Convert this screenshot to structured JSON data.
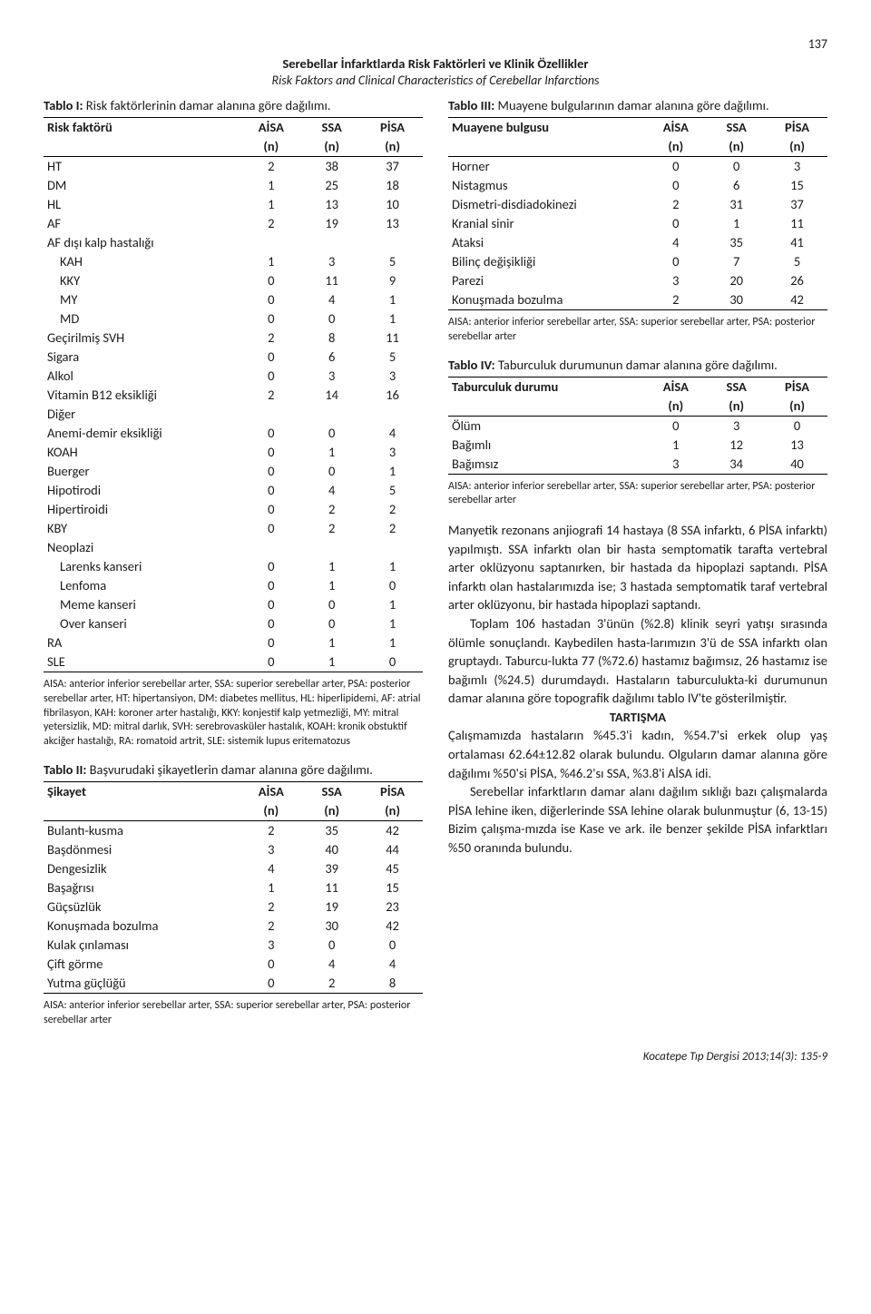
{
  "page_number": "137",
  "header": {
    "title_tr": "Serebellar İnfarktlarda Risk Faktörleri ve Klinik Özellikler",
    "title_en": "Risk Faktors and Clinical Characteristics of Cerebellar Infarctions"
  },
  "table1": {
    "caption_label": "Tablo I:",
    "caption_text": " Risk faktörlerinin damar alanına göre dağılımı.",
    "col_headers": [
      "Risk faktörü",
      "AİSA",
      "SSA",
      "PİSA"
    ],
    "sub_headers": [
      "",
      "(n)",
      "(n)",
      "(n)"
    ],
    "rows": [
      {
        "label": "HT",
        "a": "2",
        "s": "38",
        "p": "37",
        "indent": false
      },
      {
        "label": "DM",
        "a": "1",
        "s": "25",
        "p": "18",
        "indent": false
      },
      {
        "label": "HL",
        "a": "1",
        "s": "13",
        "p": "10",
        "indent": false
      },
      {
        "label": "AF",
        "a": "2",
        "s": "19",
        "p": "13",
        "indent": false
      },
      {
        "label": "AF dışı kalp hastalığı",
        "a": "",
        "s": "",
        "p": "",
        "indent": false
      },
      {
        "label": "KAH",
        "a": "1",
        "s": "3",
        "p": "5",
        "indent": true
      },
      {
        "label": "KKY",
        "a": "0",
        "s": "11",
        "p": "9",
        "indent": true
      },
      {
        "label": "MY",
        "a": "0",
        "s": "4",
        "p": "1",
        "indent": true
      },
      {
        "label": "MD",
        "a": "0",
        "s": "0",
        "p": "1",
        "indent": true
      },
      {
        "label": "Geçirilmiş SVH",
        "a": "2",
        "s": "8",
        "p": "11",
        "indent": false
      },
      {
        "label": "Sigara",
        "a": "0",
        "s": "6",
        "p": "5",
        "indent": false
      },
      {
        "label": "Alkol",
        "a": "0",
        "s": "3",
        "p": "3",
        "indent": false
      },
      {
        "label": "Vitamin B12 eksikliği",
        "a": "2",
        "s": "14",
        "p": "16",
        "indent": false
      },
      {
        "label": "Diğer",
        "a": "",
        "s": "",
        "p": "",
        "indent": false
      },
      {
        "label": "Anemi-demir eksikliği",
        "a": "0",
        "s": "0",
        "p": "4",
        "indent": false
      },
      {
        "label": "KOAH",
        "a": "0",
        "s": "1",
        "p": "3",
        "indent": false
      },
      {
        "label": "Buerger",
        "a": "0",
        "s": "0",
        "p": "1",
        "indent": false
      },
      {
        "label": "Hipotirodi",
        "a": "0",
        "s": "4",
        "p": "5",
        "indent": false
      },
      {
        "label": "Hipertiroidi",
        "a": "0",
        "s": "2",
        "p": "2",
        "indent": false
      },
      {
        "label": "KBY",
        "a": "0",
        "s": "2",
        "p": "2",
        "indent": false
      },
      {
        "label": "Neoplazi",
        "a": "",
        "s": "",
        "p": "",
        "indent": false
      },
      {
        "label": "Larenks kanseri",
        "a": "0",
        "s": "1",
        "p": "1",
        "indent": true
      },
      {
        "label": "Lenfoma",
        "a": "0",
        "s": "1",
        "p": "0",
        "indent": true
      },
      {
        "label": "Meme kanseri",
        "a": "0",
        "s": "0",
        "p": "1",
        "indent": true
      },
      {
        "label": "Over kanseri",
        "a": "0",
        "s": "0",
        "p": "1",
        "indent": true
      },
      {
        "label": "RA",
        "a": "0",
        "s": "1",
        "p": "1",
        "indent": false
      },
      {
        "label": "SLE",
        "a": "0",
        "s": "1",
        "p": "0",
        "indent": false
      }
    ],
    "footnote": "AISA: anterior inferior serebellar arter, SSA: superior serebellar arter, PSA: posterior serebellar arter, HT: hipertansiyon, DM: diabetes mellitus, HL: hiperlipidemi, AF: atrial fibrilasyon, KAH: koroner arter hastalığı, KKY: konjestif kalp yetmezliği,  MY: mitral yetersizlik, MD: mitral darlık, SVH: serebrovasküler hastalık, KOAH: kronik obstuktif akciğer hastalığı, RA: romatoid artrit, SLE: sistemik lupus eritematozus"
  },
  "table2": {
    "caption_label": "Tablo II:",
    "caption_text": " Başvurudaki şikayetlerin damar alanına göre dağılımı.",
    "col_headers": [
      "Şikayet",
      "AİSA",
      "SSA",
      "PİSA"
    ],
    "sub_headers": [
      "",
      "(n)",
      "(n)",
      "(n)"
    ],
    "rows": [
      {
        "label": "Bulantı-kusma",
        "a": "2",
        "s": "35",
        "p": "42"
      },
      {
        "label": "Başdönmesi",
        "a": "3",
        "s": "40",
        "p": "44"
      },
      {
        "label": "Dengesizlik",
        "a": "4",
        "s": "39",
        "p": "45"
      },
      {
        "label": "Başağrısı",
        "a": "1",
        "s": "11",
        "p": "15"
      },
      {
        "label": "Güçsüzlük",
        "a": "2",
        "s": "19",
        "p": "23"
      },
      {
        "label": "Konuşmada bozulma",
        "a": "2",
        "s": "30",
        "p": "42"
      },
      {
        "label": "Kulak çınlaması",
        "a": "3",
        "s": "0",
        "p": "0"
      },
      {
        "label": "Çift görme",
        "a": "0",
        "s": "4",
        "p": "4"
      },
      {
        "label": "Yutma güçlüğü",
        "a": "0",
        "s": "2",
        "p": "8"
      }
    ],
    "footnote": "AISA: anterior inferior serebellar arter, SSA: superior serebellar arter, PSA: posterior serebellar arter"
  },
  "table3": {
    "caption_label": "Tablo III:",
    "caption_text": " Muayene bulgularının damar alanına göre dağılımı.",
    "col_headers": [
      "Muayene bulgusu",
      "AİSA",
      "SSA",
      "PİSA"
    ],
    "sub_headers": [
      "",
      "(n)",
      "(n)",
      "(n)"
    ],
    "rows": [
      {
        "label": "Horner",
        "a": "0",
        "s": "0",
        "p": "3"
      },
      {
        "label": "Nistagmus",
        "a": "0",
        "s": "6",
        "p": "15"
      },
      {
        "label": "Dismetri-disdiadokinezi",
        "a": "2",
        "s": "31",
        "p": "37"
      },
      {
        "label": "Kranial sinir",
        "a": "0",
        "s": "1",
        "p": "11"
      },
      {
        "label": "Ataksi",
        "a": "4",
        "s": "35",
        "p": "41"
      },
      {
        "label": "Bilinç değişikliği",
        "a": "0",
        "s": "7",
        "p": "5"
      },
      {
        "label": "Parezi",
        "a": "3",
        "s": "20",
        "p": "26"
      },
      {
        "label": "Konuşmada bozulma",
        "a": "2",
        "s": "30",
        "p": "42"
      }
    ],
    "footnote": "AISA: anterior inferior serebellar arter, SSA: superior serebellar arter, PSA: posterior serebellar arter"
  },
  "table4": {
    "caption_label": "Tablo IV:",
    "caption_text": " Taburculuk durumunun damar alanına göre dağılımı.",
    "col_headers": [
      "Taburculuk durumu",
      "AİSA",
      "SSA",
      "PİSA"
    ],
    "sub_headers": [
      "",
      "(n)",
      "(n)",
      "(n)"
    ],
    "rows": [
      {
        "label": "Ölüm",
        "a": "0",
        "s": "3",
        "p": "0"
      },
      {
        "label": "Bağımlı",
        "a": "1",
        "s": "12",
        "p": "13"
      },
      {
        "label": "Bağımsız",
        "a": "3",
        "s": "34",
        "p": "40"
      }
    ],
    "footnote": "AISA: anterior inferior serebellar arter, SSA: superior serebellar arter, PSA: posterior serebellar arter"
  },
  "body": {
    "p1": "Manyetik rezonans anjiografi 14 hastaya (8 SSA infarktı, 6 PİSA infarktı) yapılmıştı. SSA infarktı olan bir hasta semptomatik tarafta vertebral arter oklüzyonu saptanırken, bir hastada da hipoplazi saptandı. PİSA infarktı olan hastalarımızda ise; 3 hastada semptomatik taraf vertebral arter oklüzyonu, bir hastada hipoplazi saptandı.",
    "p2": "Toplam 106 hastadan 3'ünün (%2.8) klinik seyri yatışı sırasında ölümle sonuçlandı. Kaybedilen hasta-larımızın 3'ü de SSA infarktı olan gruptaydı. Taburcu-lukta 77 (%72.6) hastamız bağımsız, 26 hastamız ise bağımlı (%24.5) durumdaydı. Hastaların taburculukta-ki durumunun damar alanına göre topografik dağılımı tablo IV'te gösterilmiştir.",
    "sec_head": "TARTIŞMA",
    "p3": "Çalışmamızda hastaların %45.3'i kadın, %54.7'si erkek olup yaş ortalaması 62.64±12.82 olarak bulundu. Olguların damar alanına göre dağılımı %50'si PİSA, %46.2'sı SSA, %3.8'i AİSA idi.",
    "p4": "Serebellar infarktların damar alanı dağılım sıklığı bazı çalışmalarda PİSA lehine iken, diğerlerinde SSA lehine olarak bulunmuştur (6, 13-15) Bizim çalışma-mızda ise Kase ve ark. ile benzer şekilde PİSA infarktları %50 oranında bulundu."
  },
  "journal": "Kocatepe Tıp Dergisi 2013;14(3): 135-9"
}
